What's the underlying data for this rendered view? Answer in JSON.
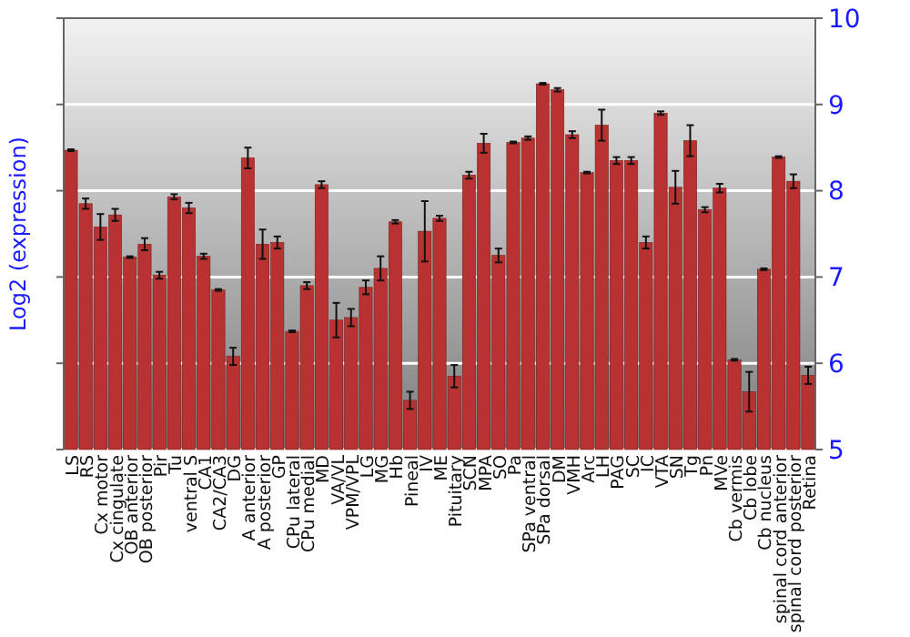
{
  "chart_data": {
    "type": "bar",
    "ylabel": "Log2 (expression)",
    "categories": [
      "LS",
      "RS",
      "Cx motor",
      "Cx cingulate",
      "OB anterior",
      "OB posterior",
      "Pir",
      "Tu",
      "ventral S",
      "CA1",
      "CA2/CA3",
      "DG",
      "A anterior",
      "A posterior",
      "GP",
      "CPu lateral",
      "CPu medial",
      "MD",
      "VA/VL",
      "VPM/VPL",
      "LG",
      "MG",
      "Hb",
      "Pineal",
      "IV",
      "ME",
      "Pituitary",
      "SCN",
      "MPA",
      "SO",
      "Pa",
      "SPa ventral",
      "SPa dorsal",
      "DM",
      "VMH",
      "Arc",
      "LH",
      "PAG",
      "SC",
      "IC",
      "VTA",
      "SN",
      "Tg",
      "Pn",
      "MVe",
      "Cb vermis",
      "Cb lobe",
      "Cb nucleus",
      "spinal cord anterior",
      "spinal cord posterior",
      "Retina"
    ],
    "values": [
      8.47,
      7.85,
      7.58,
      7.72,
      7.23,
      7.38,
      7.02,
      7.93,
      7.8,
      7.24,
      6.85,
      6.08,
      8.38,
      7.38,
      7.4,
      6.37,
      6.9,
      8.07,
      6.5,
      6.53,
      6.88,
      7.1,
      7.64,
      5.57,
      7.53,
      7.68,
      5.85,
      8.18,
      8.55,
      7.25,
      8.56,
      8.61,
      9.24,
      9.17,
      8.65,
      8.21,
      8.76,
      8.35,
      8.35,
      7.4,
      8.9,
      8.04,
      8.58,
      7.78,
      8.03,
      6.04,
      5.67,
      7.09,
      8.39,
      8.11,
      5.86
    ],
    "errors": [
      0.01,
      0.06,
      0.15,
      0.07,
      0.01,
      0.07,
      0.04,
      0.03,
      0.06,
      0.03,
      0.01,
      0.1,
      0.12,
      0.17,
      0.07,
      0.01,
      0.04,
      0.04,
      0.2,
      0.1,
      0.08,
      0.14,
      0.02,
      0.1,
      0.35,
      0.03,
      0.13,
      0.04,
      0.11,
      0.08,
      0.01,
      0.02,
      0.01,
      0.02,
      0.04,
      0.01,
      0.18,
      0.04,
      0.04,
      0.07,
      0.02,
      0.19,
      0.18,
      0.03,
      0.05,
      0.01,
      0.23,
      0.01,
      0.01,
      0.08,
      0.1
    ],
    "color": "#b83232",
    "ylim": [
      5,
      10
    ],
    "yticks": [
      5,
      6,
      7,
      8,
      9,
      10
    ],
    "grid": "y"
  }
}
